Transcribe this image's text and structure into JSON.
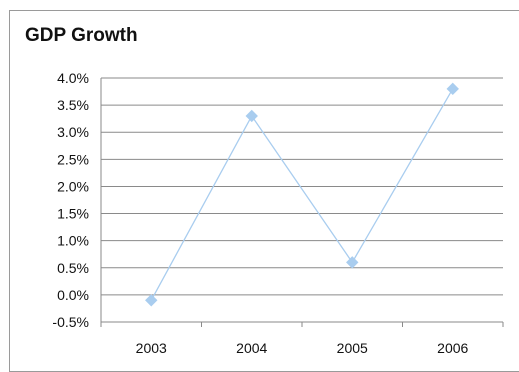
{
  "chart_data": {
    "type": "line",
    "title": "GDP Growth",
    "xlabel": "",
    "ylabel": "",
    "categories": [
      "2003",
      "2004",
      "2005",
      "2006"
    ],
    "series": [
      {
        "values": [
          -0.1,
          3.3,
          0.6,
          3.8
        ],
        "color": "#a9cdef",
        "marker": "diamond"
      }
    ],
    "ylim": [
      -0.5,
      4.0
    ],
    "ytick_step": 0.5,
    "y_tick_labels": [
      "-0.5%",
      "0.0%",
      "0.5%",
      "1.0%",
      "1.5%",
      "2.0%",
      "2.5%",
      "3.0%",
      "3.5%",
      "4.0%"
    ],
    "grid": true,
    "gridline_color": "#8a8a8a",
    "legend": false
  }
}
